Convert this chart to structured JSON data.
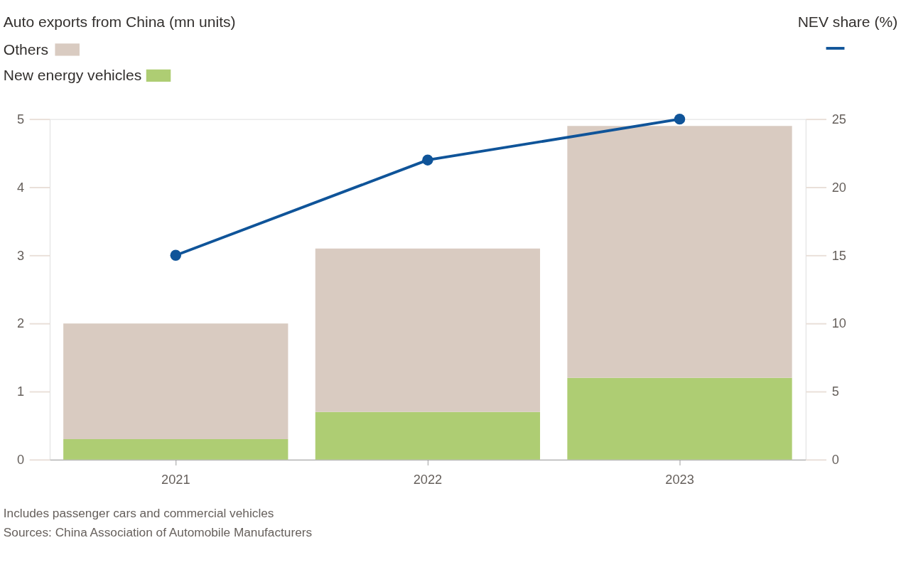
{
  "chart_data": {
    "type": "bar",
    "stacked": true,
    "categories": [
      "2021",
      "2022",
      "2023"
    ],
    "series": [
      {
        "name": "New energy vehicles",
        "color": "#aecd73",
        "values": [
          0.3,
          0.7,
          1.2
        ]
      },
      {
        "name": "Others",
        "color": "#d9cbc1",
        "values": [
          1.7,
          2.4,
          3.7
        ]
      },
      {
        "type": "line",
        "axis": "y2",
        "color": "#0f5499",
        "marker": "circle",
        "values": [
          15,
          22,
          25
        ]
      }
    ],
    "ylim": [
      0,
      5
    ],
    "yticks": [
      0,
      1,
      2,
      3,
      4,
      5
    ],
    "y2lim": [
      0,
      25
    ],
    "y2ticks": [
      0,
      5,
      10,
      15,
      20,
      25
    ],
    "legend": "top left",
    "grid": false,
    "annotations": [
      "Auto exports from China (mn units)",
      "NEV share (%)",
      "Includes passenger cars and commercial vehicles",
      "Sources: China Association of Automobile Manufacturers"
    ]
  }
}
